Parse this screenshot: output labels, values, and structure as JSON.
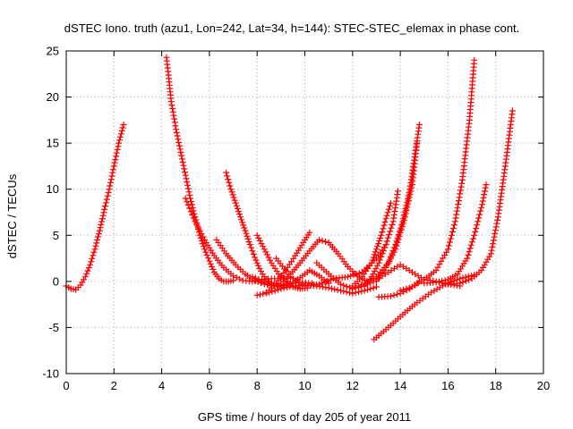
{
  "chart_data": {
    "type": "scatter",
    "title": "dSTEC Iono. truth (azu1, Lon=242, Lat=34, h=144): STEC-STEC_elemax in phase cont.",
    "xlabel": "GPS time / hours of day 205 of year 2011",
    "ylabel": "dSTEC  / TECUs",
    "xlim": [
      0,
      20
    ],
    "ylim": [
      -10,
      25
    ],
    "xticks": [
      0,
      2,
      4,
      6,
      8,
      10,
      12,
      14,
      16,
      18,
      20
    ],
    "yticks": [
      -10,
      -5,
      0,
      5,
      10,
      15,
      20,
      25
    ],
    "grid": true,
    "legend": "none",
    "marker": "plus",
    "color": "#ff0000",
    "series": [
      {
        "x": [
          0.0,
          0.2,
          0.4,
          0.6,
          0.8,
          1.0,
          1.2,
          1.4,
          1.6,
          1.8,
          2.0,
          2.2,
          2.4
        ],
        "y": [
          -0.5,
          -0.8,
          -0.9,
          -0.4,
          0.5,
          1.8,
          3.5,
          5.5,
          7.8,
          10.0,
          12.5,
          15.0,
          17.0
        ]
      },
      {
        "x": [
          4.2,
          4.3,
          4.4,
          4.6,
          4.8,
          5.0,
          5.2,
          5.4,
          5.6,
          5.8,
          6.0,
          6.2,
          6.4,
          6.6,
          6.8,
          7.0
        ],
        "y": [
          24.3,
          22.0,
          19.5,
          16.5,
          14.0,
          11.5,
          9.0,
          7.0,
          5.0,
          3.5,
          2.2,
          1.0,
          0.3,
          0.0,
          0.0,
          0.1
        ]
      },
      {
        "x": [
          5.0,
          5.4,
          5.8,
          6.2,
          6.6,
          7.0,
          7.4,
          7.8,
          8.2,
          8.6,
          9.0,
          9.4
        ],
        "y": [
          9.0,
          6.5,
          4.5,
          2.8,
          1.5,
          0.6,
          0.1,
          0.0,
          0.2,
          0.3,
          0.3,
          0.4
        ]
      },
      {
        "x": [
          6.7,
          6.9,
          7.1,
          7.3,
          7.5,
          7.7,
          7.9,
          8.1,
          8.3,
          8.5,
          8.7
        ],
        "y": [
          11.8,
          10.0,
          8.5,
          7.0,
          5.5,
          4.0,
          2.6,
          1.4,
          0.5,
          0.0,
          -0.3
        ]
      },
      {
        "x": [
          6.3,
          6.7,
          7.1,
          7.5,
          7.9,
          8.3,
          8.7,
          9.1,
          9.5,
          9.9,
          10.3
        ],
        "y": [
          4.5,
          3.0,
          1.8,
          0.8,
          0.1,
          -0.3,
          -0.5,
          -0.4,
          -0.2,
          -0.1,
          -0.2
        ]
      },
      {
        "x": [
          8.0,
          8.3,
          8.6,
          8.9,
          9.2,
          9.5,
          9.8,
          10.1
        ],
        "y": [
          5.0,
          3.5,
          2.0,
          0.8,
          0.0,
          -0.6,
          -0.8,
          -0.7
        ]
      },
      {
        "x": [
          8.0,
          8.5,
          9.0,
          9.5,
          10.0,
          10.5,
          11.0,
          11.5,
          12.0,
          12.5,
          13.0
        ],
        "y": [
          -1.5,
          -1.2,
          -0.8,
          -0.5,
          -0.4,
          -0.5,
          -0.7,
          -1.0,
          -1.3,
          -1.0,
          -0.6
        ]
      },
      {
        "x": [
          8.4,
          8.8,
          9.2,
          9.6,
          10.0,
          10.2
        ],
        "y": [
          -1.2,
          -0.2,
          1.2,
          2.8,
          4.5,
          5.3
        ]
      },
      {
        "x": [
          9.0,
          9.4,
          9.8,
          10.2,
          10.6,
          11.0,
          11.4,
          11.8,
          12.2,
          12.6
        ],
        "y": [
          -0.3,
          0.8,
          2.0,
          3.3,
          4.5,
          4.2,
          3.0,
          1.6,
          0.6,
          0.0
        ]
      },
      {
        "x": [
          8.8,
          9.4,
          10.0,
          10.6,
          11.2,
          11.8,
          12.4,
          13.0,
          13.4
        ],
        "y": [
          2.5,
          0.5,
          -0.5,
          -0.3,
          0.3,
          0.5,
          1.0,
          2.5,
          4.0
        ]
      },
      {
        "x": [
          10.5,
          11.0,
          11.5,
          12.0,
          12.5,
          13.0,
          13.5,
          14.0,
          14.5,
          15.0,
          15.5,
          16.0,
          16.5
        ],
        "y": [
          2.0,
          0.8,
          -0.3,
          -0.8,
          -0.5,
          0.2,
          1.0,
          1.8,
          1.0,
          0.2,
          0.0,
          -0.3,
          -0.5
        ]
      },
      {
        "x": [
          12.0,
          12.4,
          12.8,
          13.0,
          13.2,
          13.4,
          13.6
        ],
        "y": [
          -0.5,
          0.5,
          2.0,
          3.5,
          5.0,
          6.8,
          8.5
        ]
      },
      {
        "x": [
          12.5,
          12.8,
          13.1,
          13.4,
          13.7,
          13.9
        ],
        "y": [
          -0.5,
          0.5,
          2.0,
          4.0,
          6.5,
          9.8
        ]
      },
      {
        "x": [
          12.0,
          12.5,
          13.0,
          13.5,
          13.8,
          14.1,
          14.4,
          14.6,
          14.8
        ],
        "y": [
          -0.8,
          -0.2,
          0.5,
          2.0,
          4.0,
          6.5,
          10.0,
          13.5,
          17.0
        ]
      },
      {
        "x": [
          13.0,
          13.4,
          13.8,
          14.2,
          14.5,
          14.7
        ],
        "y": [
          0.0,
          1.5,
          3.5,
          7.0,
          10.5,
          15.0
        ]
      },
      {
        "x": [
          13.1,
          13.6,
          14.0,
          14.4,
          14.8
        ],
        "y": [
          -1.7,
          -1.6,
          -1.3,
          -0.8,
          0.0
        ]
      },
      {
        "x": [
          12.9,
          13.5,
          14.1,
          14.7,
          15.3,
          15.9,
          16.5,
          17.1
        ],
        "y": [
          -6.3,
          -5.0,
          -3.6,
          -2.3,
          -1.2,
          -0.3,
          0.3,
          0.7
        ]
      },
      {
        "x": [
          14.0,
          14.5,
          15.0,
          15.5,
          16.0,
          16.3,
          16.6,
          16.9,
          17.1
        ],
        "y": [
          -1.0,
          -0.6,
          0.2,
          1.2,
          3.5,
          6.5,
          11.0,
          17.5,
          24.0
        ]
      },
      {
        "x": [
          15.0,
          15.5,
          16.0,
          16.4,
          16.8,
          17.1,
          17.4,
          17.6
        ],
        "y": [
          -0.2,
          -0.1,
          0.2,
          0.8,
          2.5,
          5.0,
          8.0,
          10.5
        ]
      },
      {
        "x": [
          16.0,
          16.5,
          17.0,
          17.4,
          17.8,
          18.1,
          18.4,
          18.7
        ],
        "y": [
          -0.3,
          -0.2,
          0.3,
          1.2,
          3.0,
          7.0,
          12.5,
          18.5
        ]
      },
      {
        "x": [
          7.8,
          8.2,
          8.6,
          9.0,
          9.4,
          9.8,
          10.2,
          10.6,
          11.0
        ],
        "y": [
          0.5,
          0.1,
          -0.4,
          -0.6,
          -0.3,
          0.4,
          1.2,
          0.6,
          -0.2
        ]
      }
    ]
  }
}
